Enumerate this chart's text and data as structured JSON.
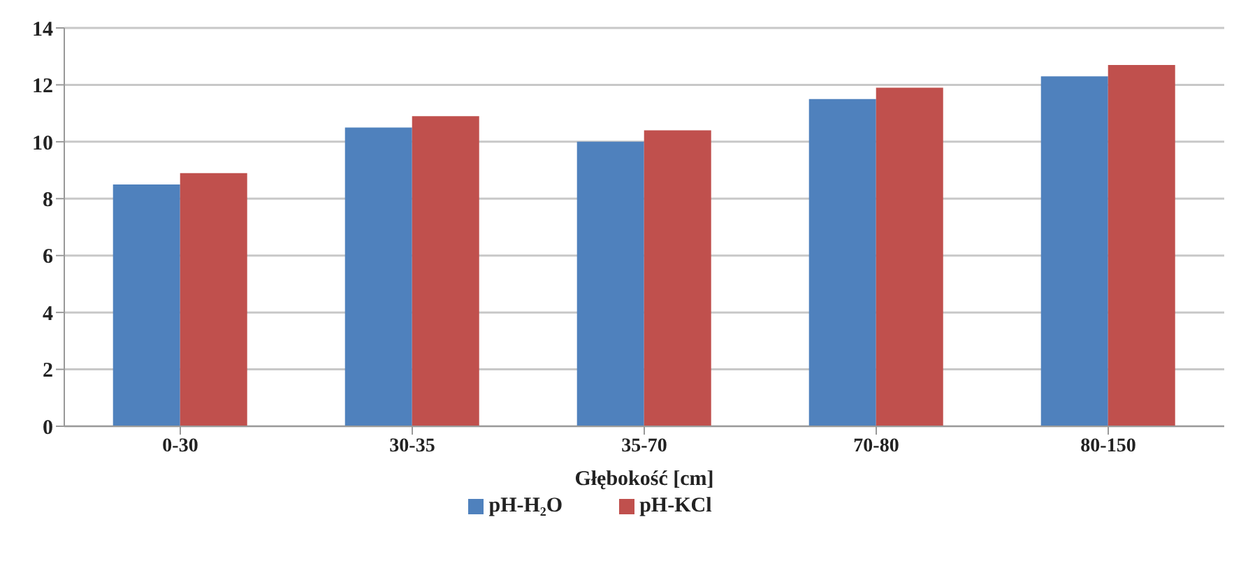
{
  "chart_data": {
    "type": "bar",
    "xlabel": "Głębokość [cm]",
    "categories": [
      "0-30",
      "30-35",
      "35-70",
      "70-80",
      "80-150"
    ],
    "series": [
      {
        "name": "pH-H₂O",
        "color": "#4f81bd",
        "values": [
          8.5,
          10.5,
          10.0,
          11.5,
          12.3
        ]
      },
      {
        "name": "pH-KCl",
        "color": "#c0504d",
        "values": [
          8.9,
          10.9,
          10.4,
          11.9,
          12.7
        ]
      }
    ],
    "ylim": [
      0,
      14
    ],
    "yticks": [
      0,
      2,
      4,
      6,
      8,
      10,
      12,
      14
    ],
    "grid": "y",
    "legend": "bottom"
  }
}
